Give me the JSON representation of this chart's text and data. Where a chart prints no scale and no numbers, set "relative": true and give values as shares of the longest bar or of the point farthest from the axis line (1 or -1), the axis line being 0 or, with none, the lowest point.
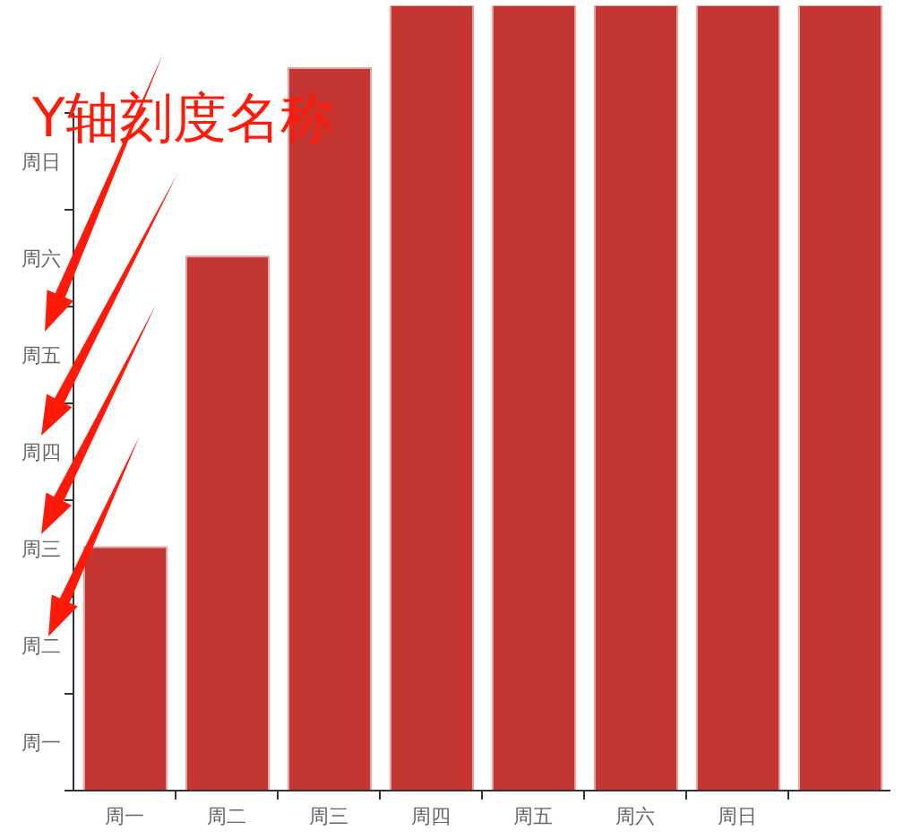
{
  "chart_data": {
    "type": "bar",
    "categories": [
      "周一",
      "周二",
      "周三",
      "周四",
      "周五",
      "周六",
      "周日",
      null
    ],
    "values": [
      0.31,
      0.68,
      0.92,
      1,
      1,
      1,
      1,
      1
    ],
    "color": "#c23531",
    "relative": true,
    "annotations": [
      "Y轴刻度名称",
      "周一",
      "周二",
      "周三",
      "周四",
      "周五",
      "周六",
      "周日"
    ]
  }
}
